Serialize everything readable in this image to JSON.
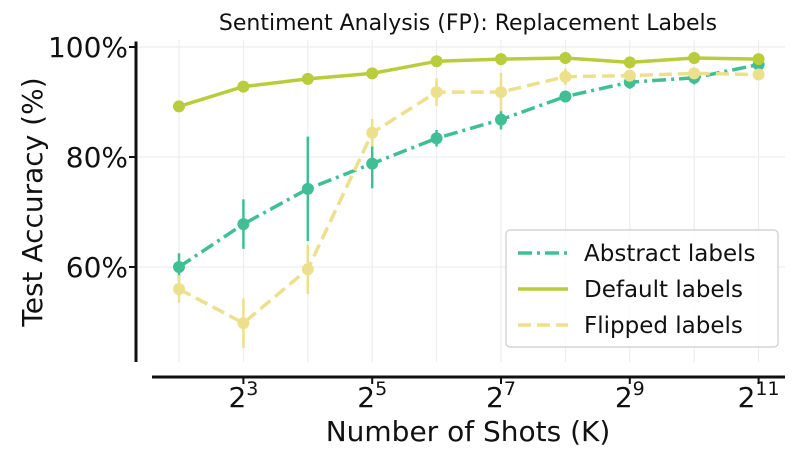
{
  "chart_data": {
    "type": "line",
    "title": "Sentiment Analysis (FP): Replacement Labels",
    "xlabel": "Number of Shots (K)",
    "ylabel": "Test Accuracy (%)",
    "x_scale": "log2",
    "x": [
      4,
      8,
      16,
      32,
      64,
      128,
      256,
      512,
      1024,
      2048
    ],
    "x_ticks": [
      {
        "value": 8,
        "base": "2",
        "exp": "3"
      },
      {
        "value": 32,
        "base": "2",
        "exp": "5"
      },
      {
        "value": 128,
        "base": "2",
        "exp": "7"
      },
      {
        "value": 512,
        "base": "2",
        "exp": "9"
      },
      {
        "value": 2048,
        "base": "2",
        "exp": "11"
      }
    ],
    "ylim": [
      42,
      101
    ],
    "y_ticks": [
      {
        "value": 60,
        "label": "60%"
      },
      {
        "value": 80,
        "label": "80%"
      },
      {
        "value": 100,
        "label": "100%"
      }
    ],
    "grid": true,
    "legend_position": "lower-right",
    "series": [
      {
        "name": "Abstract labels",
        "color": "#40bf95",
        "dash": "dashdot",
        "values": [
          60.0,
          67.8,
          74.2,
          78.8,
          83.4,
          86.8,
          91.0,
          93.6,
          94.4,
          96.8
        ],
        "err": [
          2.5,
          4.5,
          9.5,
          4.5,
          1.5,
          1.8,
          0.8,
          1.2,
          1.2,
          0.8
        ]
      },
      {
        "name": "Default labels",
        "color": "#b8cc3c",
        "dash": "solid",
        "values": [
          89.2,
          92.8,
          94.2,
          95.2,
          97.4,
          97.8,
          98.0,
          97.2,
          98.0,
          97.8
        ],
        "err": [
          0.5,
          0.5,
          0.5,
          0.5,
          0.5,
          0.5,
          0.5,
          0.5,
          0.5,
          0.5
        ]
      },
      {
        "name": "Flipped labels",
        "color": "#ede08c",
        "dash": "dashed",
        "values": [
          56.0,
          49.8,
          59.6,
          84.4,
          91.8,
          91.8,
          94.6,
          94.8,
          95.2,
          95.0
        ],
        "err": [
          2.5,
          4.5,
          4.5,
          2.5,
          2.5,
          3.5,
          1.5,
          1.0,
          1.0,
          1.0
        ]
      }
    ]
  }
}
